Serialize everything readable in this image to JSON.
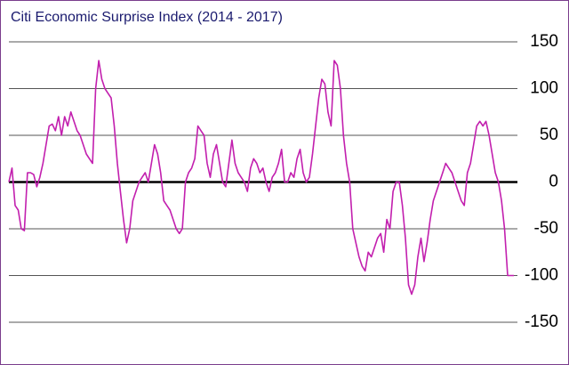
{
  "chart_data": {
    "type": "line",
    "title": "Citi Economic Surprise Index (2014 - 2017)",
    "series": [
      {
        "color": "#c21fae",
        "values": [
          0,
          15,
          -25,
          -30,
          -50,
          -52,
          10,
          10,
          8,
          -5,
          5,
          20,
          40,
          60,
          62,
          55,
          70,
          50,
          70,
          60,
          75,
          65,
          55,
          50,
          40,
          30,
          25,
          20,
          100,
          130,
          110,
          100,
          95,
          90,
          60,
          20,
          -10,
          -40,
          -65,
          -50,
          -20,
          -10,
          0,
          5,
          10,
          0,
          20,
          40,
          30,
          10,
          -20,
          -25,
          -30,
          -40,
          -50,
          -55,
          -50,
          0,
          10,
          15,
          25,
          60,
          55,
          50,
          20,
          5,
          30,
          40,
          20,
          0,
          -5,
          20,
          45,
          20,
          10,
          5,
          0,
          -10,
          15,
          25,
          20,
          10,
          15,
          0,
          -10,
          5,
          10,
          20,
          35,
          0,
          0,
          10,
          5,
          25,
          35,
          10,
          0,
          5,
          30,
          60,
          90,
          110,
          105,
          75,
          60,
          130,
          125,
          100,
          50,
          20,
          0,
          -50,
          -65,
          -80,
          -90,
          -95,
          -75,
          -80,
          -70,
          -60,
          -55,
          -75,
          -40,
          -50,
          -10,
          0,
          0,
          -25,
          -60,
          -110,
          -120,
          -110,
          -80,
          -60,
          -85,
          -65,
          -40,
          -20,
          -10,
          0,
          10,
          20,
          15,
          10,
          0,
          -10,
          -20,
          -25,
          10,
          20,
          40,
          60,
          65,
          60,
          65,
          50,
          30,
          10,
          0,
          -20,
          -50,
          -100,
          -100,
          -100
        ]
      }
    ],
    "ylim": [
      -150,
      150
    ],
    "yticks": [
      150,
      100,
      50,
      0,
      -50,
      -100,
      -150
    ],
    "grid": true
  }
}
